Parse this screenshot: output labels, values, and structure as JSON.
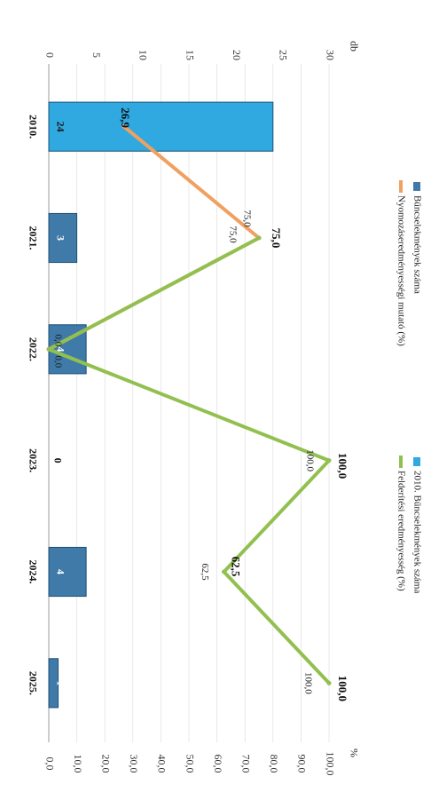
{
  "chart_data": {
    "type": "bar",
    "orientation": "rotated-90-clockwise",
    "categories": [
      "2010.",
      "2021.",
      "2022.",
      "2023.",
      "2024.",
      "2025."
    ],
    "left_axis": {
      "unit": "db",
      "range": [
        0,
        30
      ],
      "ticks": [
        "0",
        "5",
        "10",
        "15",
        "20",
        "25",
        "30"
      ]
    },
    "right_axis": {
      "unit": "%",
      "range": [
        0,
        100
      ],
      "ticks": [
        "0,0",
        "10,0",
        "20,0",
        "30,0",
        "40,0",
        "50,0",
        "60,0",
        "70,0",
        "80,0",
        "90,0",
        "100,0"
      ]
    },
    "series": [
      {
        "name": "Bűncselekmények száma",
        "type": "bar",
        "axis": "left",
        "color": "#3f7aa8",
        "values": [
          null,
          3,
          4,
          0,
          4,
          1
        ],
        "labels": [
          "",
          "3",
          "4",
          "0",
          "4",
          "1"
        ]
      },
      {
        "name": "2010. Bűncselekmények száma",
        "type": "bar",
        "axis": "left",
        "color": "#2fa9e0",
        "values": [
          24,
          null,
          null,
          null,
          null,
          null
        ],
        "labels": [
          "24",
          "",
          "",
          "",
          "",
          ""
        ]
      },
      {
        "name": "Nyomozáseredményességi mutató (%)",
        "type": "line",
        "axis": "right",
        "color": "#f0a060",
        "values": [
          26.9,
          75.0,
          0.0,
          null,
          null,
          null
        ],
        "labels": [
          "26,9",
          "75,0",
          "0,0",
          "",
          "",
          ""
        ]
      },
      {
        "name": "Felderítési eredményesség (%)",
        "type": "line",
        "axis": "right",
        "color": "#92c050",
        "values": [
          null,
          75.0,
          0.0,
          100.0,
          62.5,
          100.0
        ],
        "labels": [
          "",
          "75,0",
          "0,0",
          "100,0",
          "62,5",
          "100,0"
        ]
      }
    ],
    "extra_labels": [
      {
        "category": "2021.",
        "text": "75,0"
      },
      {
        "category": "2022.",
        "text": "0,0"
      },
      {
        "category": "2023.",
        "text": "100,0"
      },
      {
        "category": "2024.",
        "text": "62,5"
      },
      {
        "category": "2025.",
        "text": "100,0"
      }
    ],
    "legend": {
      "position": "right",
      "entries": [
        "Bűncselekmények száma",
        "2010. Bűncselekmények száma",
        "Nyomozáseredményességi mutató (%)",
        "Felderítési eredményesség (%)"
      ]
    },
    "grid": true
  }
}
